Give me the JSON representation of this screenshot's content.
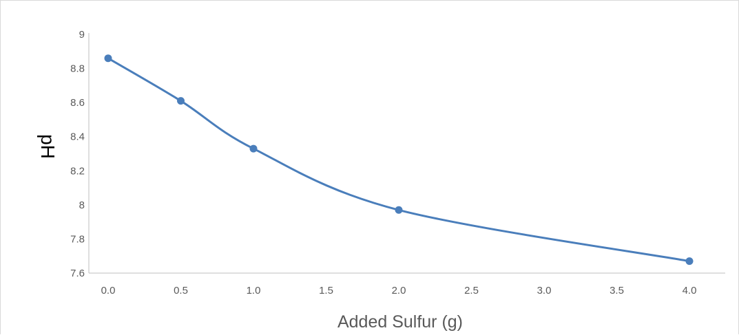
{
  "chart_data": {
    "type": "line",
    "title": "",
    "xlabel": "Added Sulfur (g)",
    "ylabel": "pH",
    "x_ticks": [
      "0.0",
      "0.5",
      "1.0",
      "1.5",
      "2.0",
      "2.5",
      "3.0",
      "3.5",
      "4.0"
    ],
    "y_ticks": [
      "7.6",
      "7.8",
      "8",
      "8.2",
      "8.4",
      "8.6",
      "8.8",
      "9"
    ],
    "xlim": [
      0,
      4
    ],
    "ylim": [
      7.6,
      9
    ],
    "grid": false,
    "smooth": true,
    "series": [
      {
        "color": "#4a7ebb",
        "points": [
          {
            "x": 0.0,
            "y": 8.86
          },
          {
            "x": 0.5,
            "y": 8.61
          },
          {
            "x": 1.0,
            "y": 8.33
          },
          {
            "x": 2.0,
            "y": 7.97
          },
          {
            "x": 4.0,
            "y": 7.67
          }
        ]
      }
    ]
  },
  "colors": {
    "axis": "#bfbfbf",
    "series": "#4a7ebb",
    "tick_text": "#595959"
  }
}
